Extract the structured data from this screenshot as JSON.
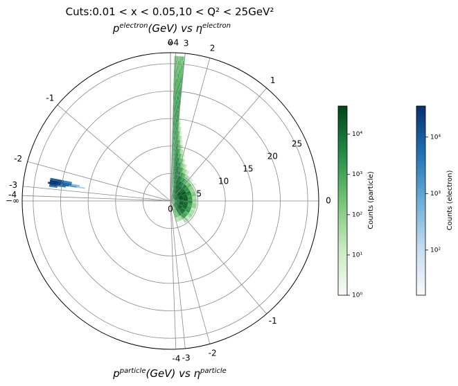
{
  "chart_data": {
    "type": "heatmap",
    "title_line1": "Cuts:0.01 < x < 0.05,10 < Q² < 25GeV²",
    "top_title": {
      "var": "p",
      "var_sup": "electron",
      "unit": "(GeV) vs ",
      "eta": "η",
      "eta_sup": "electron"
    },
    "bottom_title": {
      "var": "p",
      "var_sup": "particle",
      "unit": "(GeV) vs ",
      "eta": "η",
      "eta_sup": "particle"
    },
    "radial_ticks": [
      "5",
      "10",
      "15",
      "20",
      "25"
    ],
    "radial_max": 27,
    "eta_labels_upper": [
      {
        "eta": 0,
        "label": "0"
      },
      {
        "eta": -1,
        "label": "-1"
      },
      {
        "eta": -2,
        "label": "-2"
      },
      {
        "eta": -3,
        "label": "-3"
      },
      {
        "eta": -4,
        "label": "-4"
      },
      {
        "eta": -99,
        "label": "−∞"
      }
    ],
    "eta_labels_lower": [
      {
        "eta": -4,
        "label": "-4"
      },
      {
        "eta": -3,
        "label": "-3"
      },
      {
        "eta": -2,
        "label": "-2"
      },
      {
        "eta": -1,
        "label": "-1"
      },
      {
        "eta": 0,
        "label": "0"
      },
      {
        "eta": 1,
        "label": "1"
      },
      {
        "eta": 2,
        "label": "2"
      },
      {
        "eta": 3,
        "label": "3"
      },
      {
        "eta": 4,
        "label": "4"
      },
      {
        "eta": 99,
        "label": "∞"
      }
    ],
    "origin_label": "0",
    "electron_bins": [
      {
        "eta": -2.35,
        "p": 19.0,
        "log": 3.4
      },
      {
        "eta": -2.35,
        "p": 20.5,
        "log": 4.1
      },
      {
        "eta": -2.35,
        "p": 21.5,
        "log": 3.9
      },
      {
        "eta": -2.45,
        "p": 17.5,
        "log": 2.6
      },
      {
        "eta": -2.45,
        "p": 19.0,
        "log": 3.8
      },
      {
        "eta": -2.45,
        "p": 20.5,
        "log": 4.3
      },
      {
        "eta": -2.45,
        "p": 21.5,
        "log": 4.5
      },
      {
        "eta": -2.55,
        "p": 16.5,
        "log": 2.3
      },
      {
        "eta": -2.55,
        "p": 18.0,
        "log": 3.2
      },
      {
        "eta": -2.55,
        "p": 19.5,
        "log": 4.0
      },
      {
        "eta": -2.55,
        "p": 21.0,
        "log": 4.4
      },
      {
        "eta": -2.55,
        "p": 21.8,
        "log": 4.5
      },
      {
        "eta": -2.65,
        "p": 20.0,
        "log": 3.6
      },
      {
        "eta": -2.65,
        "p": 21.5,
        "log": 4.2
      },
      {
        "eta": -2.75,
        "p": 21.5,
        "log": 3.5
      }
    ],
    "particle_density_note": "log10 counts vs (eta, p)",
    "colorbar_particle": {
      "label": "Counts (particle)",
      "ticks": [
        "10⁰",
        "10¹",
        "10²",
        "10³",
        "10⁴"
      ],
      "tick_exponents": [
        0,
        1,
        2,
        3,
        4
      ],
      "log_min": 0,
      "log_max": 4.7,
      "color_low": "#f7fcf5",
      "color_high": "#00441b"
    },
    "colorbar_electron": {
      "label": "Counts (electron)",
      "ticks": [
        "10²",
        "10³",
        "10⁴"
      ],
      "tick_exponents": [
        2,
        3,
        4
      ],
      "log_min": 1.2,
      "log_max": 4.55,
      "color_low": "#f7fbff",
      "color_high": "#08306b"
    }
  }
}
